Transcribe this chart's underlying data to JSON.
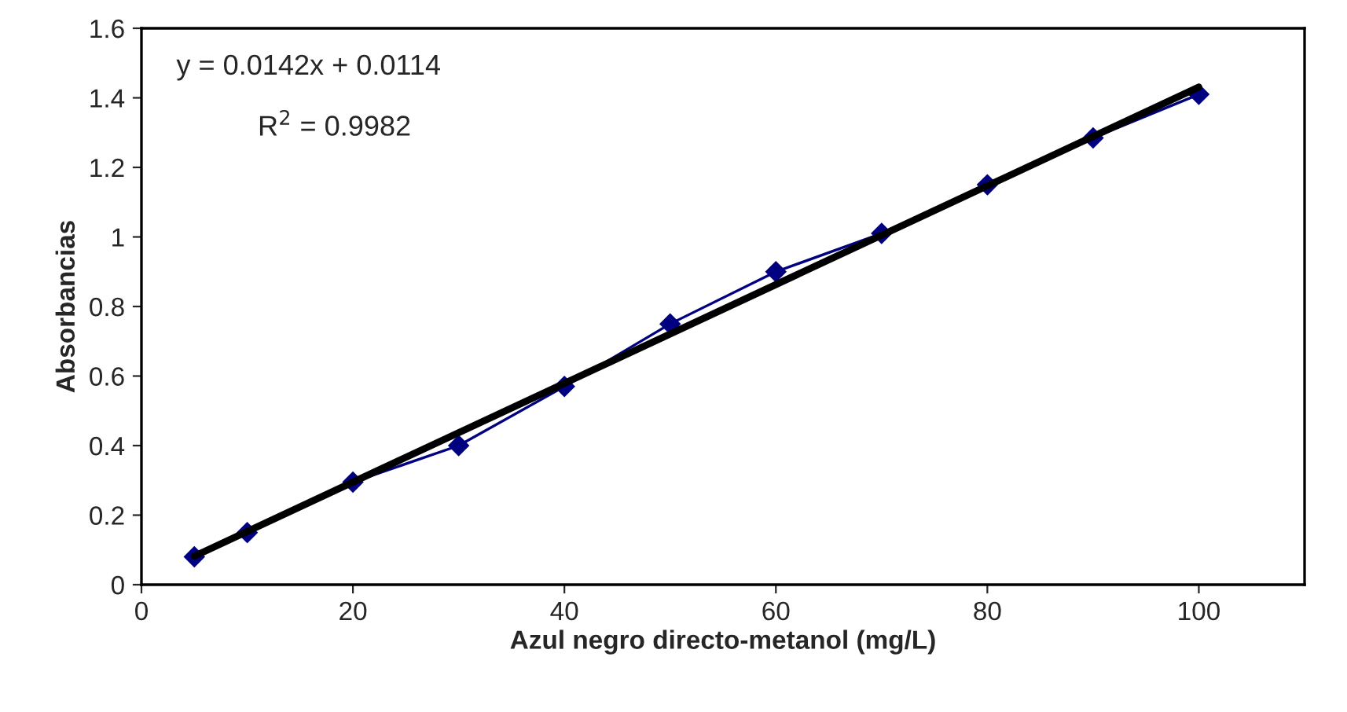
{
  "chart_data": {
    "type": "line",
    "xlabel": "Azul negro directo-metanol (mg/L)",
    "ylabel": "Absorbancias",
    "x": [
      5,
      10,
      20,
      30,
      40,
      50,
      60,
      70,
      80,
      90,
      100
    ],
    "series": [
      {
        "color": "#000080",
        "marker": "diamond",
        "values": [
          0.08,
          0.15,
          0.295,
          0.4,
          0.57,
          0.75,
          0.9,
          1.01,
          1.15,
          1.285,
          1.41
        ]
      },
      {
        "color": "#000000",
        "marker": "none",
        "x": [
          5,
          100
        ],
        "values": [
          0.082,
          1.431
        ]
      }
    ],
    "annotations": [
      "y = 0.0142x + 0.0114",
      "R$^{2}$ = 0.9982"
    ],
    "xlim": [
      0,
      110
    ],
    "xticks": [
      0,
      20,
      40,
      60,
      80,
      100
    ],
    "ylim": [
      0,
      1.6
    ],
    "yticks": [
      0,
      0.2,
      0.4,
      0.6,
      0.8,
      1,
      1.2,
      1.4,
      1.6
    ],
    "grid": false,
    "legend": false
  }
}
